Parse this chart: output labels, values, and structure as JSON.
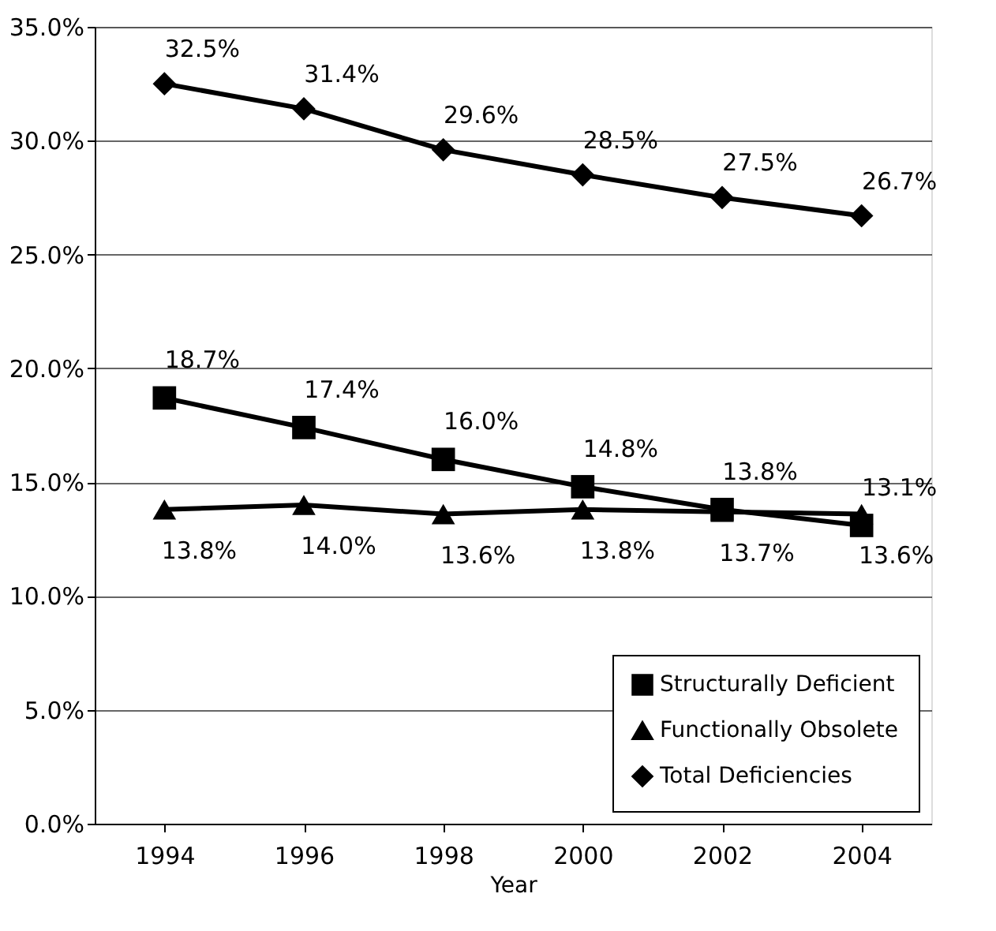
{
  "chart_data": {
    "type": "line",
    "xlabel": "Year",
    "categories": [
      "1994",
      "1996",
      "1998",
      "2000",
      "2002",
      "2004"
    ],
    "ylim": [
      0,
      35
    ],
    "yticks": [
      {
        "value": 0,
        "label": "0.0%"
      },
      {
        "value": 5,
        "label": "5.0%"
      },
      {
        "value": 10,
        "label": "10.0%"
      },
      {
        "value": 15,
        "label": "15.0%"
      },
      {
        "value": 20,
        "label": "20.0%"
      },
      {
        "value": 25,
        "label": "25.0%"
      },
      {
        "value": 30,
        "label": "30.0%"
      },
      {
        "value": 35,
        "label": "35.0%"
      }
    ],
    "grid": "y",
    "legend": "bottom right",
    "series": [
      {
        "name": "Structurally Deficient",
        "color": "#000000",
        "marker": "square",
        "values": [
          18.7,
          17.4,
          16.0,
          14.8,
          13.8,
          13.1
        ],
        "value_labels": [
          "18.7%",
          "17.4%",
          "16.0%",
          "14.8%",
          "13.8%",
          "13.1%"
        ]
      },
      {
        "name": "Functionally Obsolete",
        "color": "#000000",
        "marker": "triangle",
        "values": [
          13.8,
          14.0,
          13.6,
          13.8,
          13.7,
          13.6
        ],
        "value_labels": [
          "13.8%",
          "14.0%",
          "13.6%",
          "13.8%",
          "13.7%",
          "13.6%"
        ]
      },
      {
        "name": "Total Deficiencies",
        "color": "#000000",
        "marker": "diamond",
        "values": [
          32.5,
          31.4,
          29.6,
          28.5,
          27.5,
          26.7
        ],
        "value_labels": [
          "32.5%",
          "31.4%",
          "29.6%",
          "28.5%",
          "27.5%",
          "26.7%"
        ]
      }
    ]
  }
}
